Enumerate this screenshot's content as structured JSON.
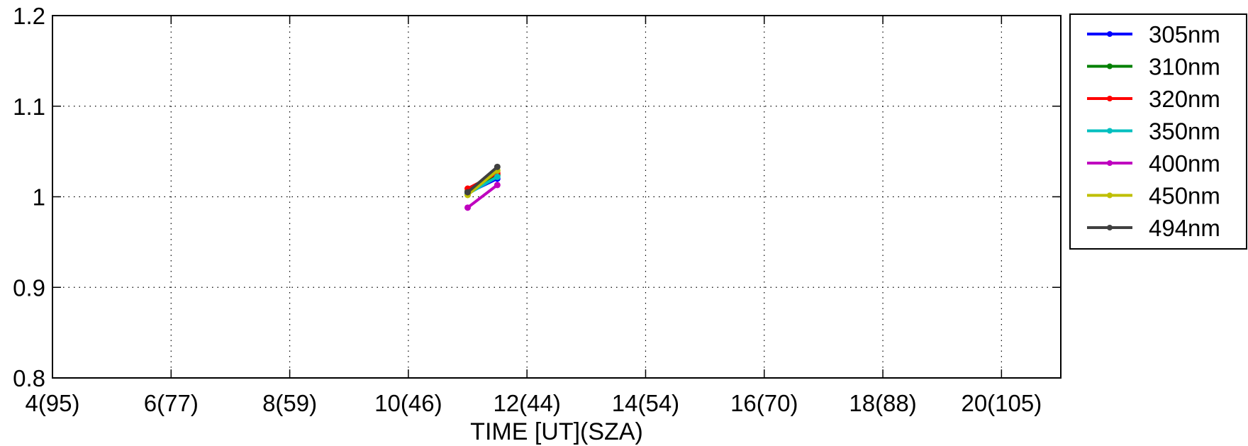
{
  "chart_data": {
    "type": "line",
    "title": "",
    "xlabel": "TIME [UT](SZA)",
    "ylabel": "",
    "xlim": [
      4,
      21
    ],
    "ylim": [
      0.8,
      1.2
    ],
    "x_ticks": [
      4,
      6,
      8,
      10,
      12,
      14,
      16,
      18,
      20
    ],
    "x_tick_labels": [
      "4(95)",
      "6(77)",
      "8(59)",
      "10(46)",
      "12(44)",
      "14(54)",
      "16(70)",
      "18(88)",
      "20(105)"
    ],
    "y_ticks": [
      0.8,
      0.9,
      1.0,
      1.1,
      1.2
    ],
    "y_tick_labels": [
      "0.8",
      "0.9",
      "1",
      "1.1",
      "1.2"
    ],
    "grid": true,
    "legend_position": "outside-right",
    "series": [
      {
        "name": "305nm",
        "color": "#0000ff",
        "x": [
          11.0,
          11.5
        ],
        "y": [
          1.004,
          1.02
        ]
      },
      {
        "name": "310nm",
        "color": "#008000",
        "x": [
          11.0,
          11.5
        ],
        "y": [
          1.006,
          1.024
        ]
      },
      {
        "name": "320nm",
        "color": "#ff0000",
        "x": [
          11.0,
          11.5
        ],
        "y": [
          1.009,
          1.026
        ]
      },
      {
        "name": "350nm",
        "color": "#00bfbf",
        "x": [
          11.0,
          11.5
        ],
        "y": [
          1.003,
          1.022
        ]
      },
      {
        "name": "400nm",
        "color": "#bf00bf",
        "x": [
          11.0,
          11.5
        ],
        "y": [
          0.988,
          1.013
        ]
      },
      {
        "name": "450nm",
        "color": "#bfbf00",
        "x": [
          11.0,
          11.5
        ],
        "y": [
          1.002,
          1.029
        ]
      },
      {
        "name": "494nm",
        "color": "#404040",
        "x": [
          11.0,
          11.5
        ],
        "y": [
          1.005,
          1.033
        ]
      }
    ]
  }
}
